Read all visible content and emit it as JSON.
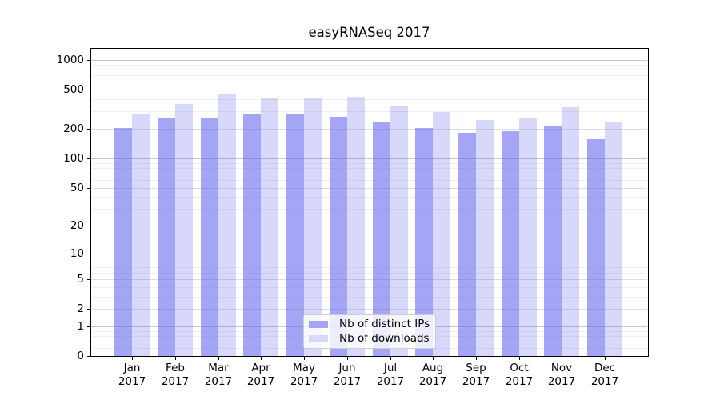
{
  "chart_data": {
    "type": "bar",
    "title": "easyRNASeq 2017",
    "categories": [
      "Jan 2017",
      "Feb 2017",
      "Mar 2017",
      "Apr 2017",
      "May 2017",
      "Jun 2017",
      "Jul 2017",
      "Aug 2017",
      "Sep 2017",
      "Oct 2017",
      "Nov 2017",
      "Dec 2017"
    ],
    "series": [
      {
        "name": "Nb of distinct IPs",
        "key": "distinct-ips",
        "color": "rgba(105,105,240,0.60)",
        "swatch_color": "#a5a5f6",
        "values": [
          205,
          260,
          259,
          287,
          285,
          268,
          232,
          204,
          184,
          190,
          218,
          158
        ]
      },
      {
        "name": "Nb of downloads",
        "key": "downloads",
        "color": "rgba(105,105,240,0.26)",
        "swatch_color": "#d8d8fa",
        "values": [
          285,
          360,
          448,
          410,
          405,
          425,
          345,
          295,
          248,
          257,
          334,
          236
        ]
      }
    ],
    "y_axis": {
      "scale": "log1p",
      "ticks": [
        0,
        1,
        2,
        5,
        10,
        20,
        50,
        100,
        200,
        500,
        1000
      ],
      "minor_ticks": [
        0.2,
        0.4,
        0.6,
        0.8,
        3,
        4,
        6,
        7,
        8,
        9,
        30,
        40,
        60,
        70,
        80,
        90,
        300,
        400,
        600,
        700,
        800,
        900
      ],
      "max": 1327
    },
    "legend": {
      "position": "inside-bottom-center"
    },
    "grid": true
  },
  "colors": {
    "background": "#ffffff",
    "spine": "#000000",
    "grid_decade": "#c6c6c6",
    "grid_labeled": "#dddddd",
    "grid_minor": "#efefef",
    "text": "#000000",
    "legend_border": "#cccccc",
    "legend_bg": "rgba(255,255,255,0.8)"
  }
}
